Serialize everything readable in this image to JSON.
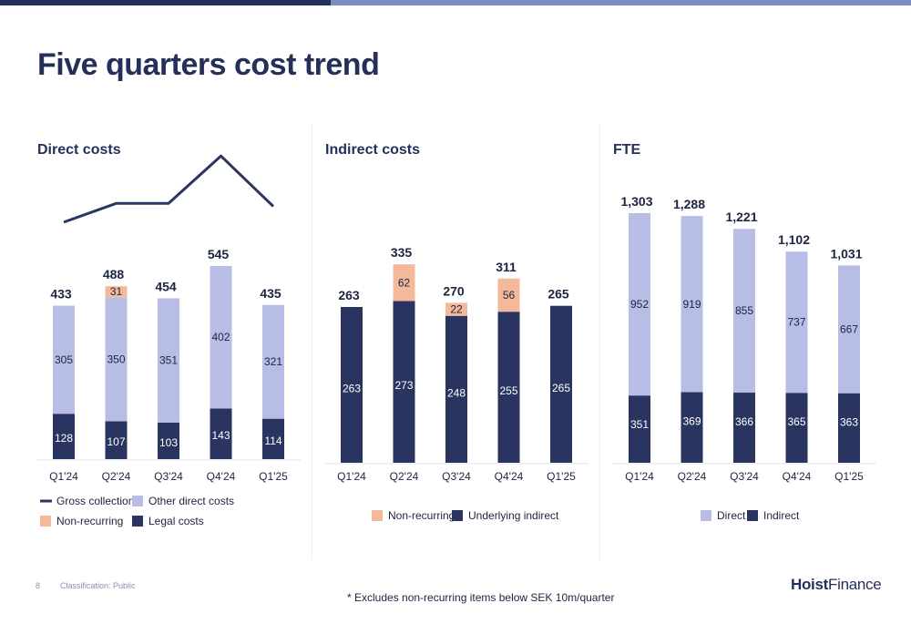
{
  "page": {
    "title": "Five quarters cost trend",
    "page_number": "8",
    "classification": "Classification: Public",
    "footnote": "* Excludes non-recurring items below SEK 10m/quarter",
    "logo_part1": "Hoist",
    "logo_part2": "Finance"
  },
  "colors": {
    "navy": "#293560",
    "light_blue": "#b8bde6",
    "peach": "#f4b89a",
    "line": "#2b3562",
    "text_dark": "#1c2440"
  },
  "chart_data": [
    {
      "id": "direct",
      "type": "bar",
      "title": "Direct costs",
      "categories": [
        "Q1'24",
        "Q2'24",
        "Q3'24",
        "Q4'24",
        "Q1'25"
      ],
      "series": [
        {
          "name": "Legal costs",
          "color": "#293560",
          "values": [
            128,
            107,
            103,
            143,
            114
          ]
        },
        {
          "name": "Other direct costs",
          "color": "#b8bde6",
          "values": [
            305,
            350,
            351,
            402,
            321
          ]
        },
        {
          "name": "Non-recurring",
          "color": "#f4b89a",
          "values": [
            0,
            31,
            0,
            0,
            0
          ]
        }
      ],
      "totals": [
        "433",
        "488",
        "454",
        "545",
        "435"
      ],
      "line_series": {
        "name": "Gross collections",
        "color": "#2b3562",
        "values": [
          0.6,
          0.79,
          0.79,
          1.27,
          0.76
        ]
      },
      "ylim": [
        0,
        700
      ],
      "legend": [
        {
          "label": "Gross collections",
          "kind": "line",
          "color": "#2b3562"
        },
        {
          "label": "Other direct costs",
          "kind": "box",
          "color": "#b8bde6"
        },
        {
          "label": "Non-recurring",
          "kind": "box",
          "color": "#f4b89a"
        },
        {
          "label": "Legal costs",
          "kind": "box",
          "color": "#293560"
        }
      ]
    },
    {
      "id": "indirect",
      "type": "bar",
      "title": "Indirect costs",
      "categories": [
        "Q1'24",
        "Q2'24",
        "Q3'24",
        "Q4'24",
        "Q1'25"
      ],
      "series": [
        {
          "name": "Underlying indirect",
          "color": "#293560",
          "values": [
            263,
            273,
            248,
            255,
            265
          ]
        },
        {
          "name": "Non-recurring",
          "color": "#f4b89a",
          "values": [
            0,
            62,
            22,
            56,
            0
          ]
        }
      ],
      "totals": [
        "263",
        "335",
        "270",
        "311",
        "265"
      ],
      "ylim": [
        0,
        450
      ],
      "legend": [
        {
          "label": "Non-recurring",
          "kind": "box",
          "color": "#f4b89a"
        },
        {
          "label": "Underlying indirect",
          "kind": "box",
          "color": "#293560"
        }
      ]
    },
    {
      "id": "fte",
      "type": "bar",
      "title": "FTE",
      "categories": [
        "Q1'24",
        "Q2'24",
        "Q3'24",
        "Q4'24",
        "Q1'25"
      ],
      "series": [
        {
          "name": "Indirect",
          "color": "#293560",
          "values": [
            351,
            369,
            366,
            365,
            363
          ]
        },
        {
          "name": "Direct",
          "color": "#b8bde6",
          "values": [
            952,
            919,
            855,
            737,
            667
          ]
        }
      ],
      "totals": [
        "1,303",
        "1,288",
        "1,221",
        "1,102",
        "1,031"
      ],
      "ylim": [
        0,
        1450
      ],
      "legend": [
        {
          "label": "Direct",
          "kind": "box",
          "color": "#b8bde6"
        },
        {
          "label": "Indirect",
          "kind": "box",
          "color": "#293560"
        }
      ]
    }
  ]
}
